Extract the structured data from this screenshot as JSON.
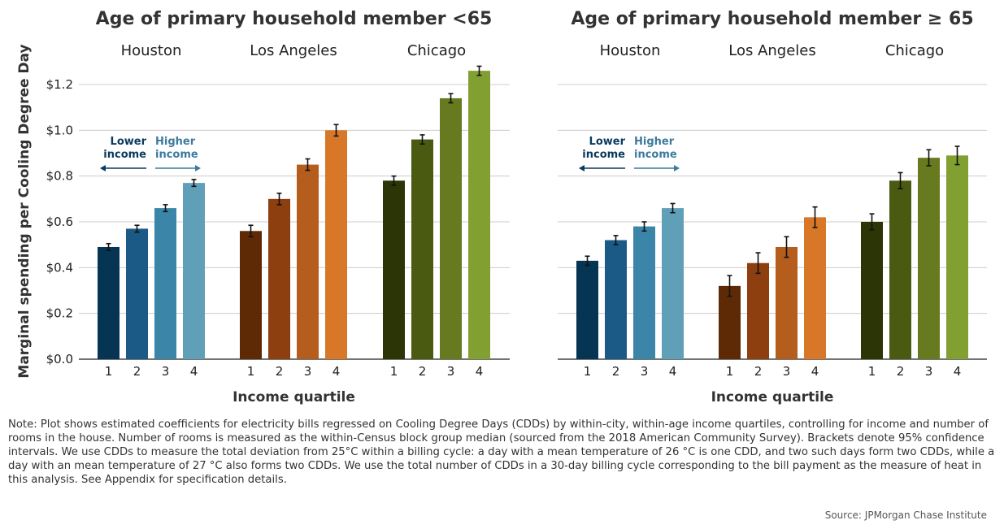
{
  "chart_data": {
    "type": "bar",
    "ylabel": "Marginal spending per Cooling Degree Day",
    "xlabel": "Income quartile",
    "ylim": [
      0,
      1.3
    ],
    "yticks": [
      0,
      0.2,
      0.4,
      0.6,
      0.8,
      1.0,
      1.2
    ],
    "ytick_labels": [
      "$0.0",
      "$0.2",
      "$0.4",
      "$0.6",
      "$0.8",
      "$1.0",
      "$1.2"
    ],
    "grid": true,
    "categories": [
      "1",
      "2",
      "3",
      "4"
    ],
    "legend": {
      "lower": "Lower\nincome",
      "higher": "Higher\nincome"
    },
    "city_colors": {
      "Houston": [
        "#053552",
        "#1b5a86",
        "#3b85a8",
        "#5f9fb7"
      ],
      "Los Angeles": [
        "#5e2a06",
        "#8d3f10",
        "#b45d1d",
        "#d97729"
      ],
      "Chicago": [
        "#2c3506",
        "#4a5a11",
        "#687a1f",
        "#82a032"
      ]
    },
    "panels": [
      {
        "title": "Age of primary household member <65",
        "groups": [
          {
            "city": "Houston",
            "values": [
              0.49,
              0.57,
              0.66,
              0.77
            ],
            "err": [
              0.015,
              0.015,
              0.015,
              0.015
            ]
          },
          {
            "city": "Los Angeles",
            "values": [
              0.56,
              0.7,
              0.85,
              1.0
            ],
            "err": [
              0.025,
              0.025,
              0.025,
              0.025
            ]
          },
          {
            "city": "Chicago",
            "values": [
              0.78,
              0.96,
              1.14,
              1.26
            ],
            "err": [
              0.02,
              0.02,
              0.02,
              0.02
            ]
          }
        ]
      },
      {
        "title": "Age of primary household member  ≥ 65",
        "groups": [
          {
            "city": "Houston",
            "values": [
              0.43,
              0.52,
              0.58,
              0.66
            ],
            "err": [
              0.02,
              0.02,
              0.02,
              0.02
            ]
          },
          {
            "city": "Los Angeles",
            "values": [
              0.32,
              0.42,
              0.49,
              0.62
            ],
            "err": [
              0.045,
              0.045,
              0.045,
              0.045
            ]
          },
          {
            "city": "Chicago",
            "values": [
              0.6,
              0.78,
              0.88,
              0.89
            ],
            "err": [
              0.035,
              0.035,
              0.035,
              0.04
            ]
          }
        ]
      }
    ]
  },
  "note": "Note: Plot shows estimated coefficients for electricity bills regressed on Cooling Degree Days (CDDs) by within-city, within-age income quartiles, controlling for income and number of rooms in the house. Number of rooms is measured as the within-Census block group median (sourced from the 2018 American Community Survey). Brackets denote 95% confidence intervals. We use CDDs to measure the total deviation from 25°C within a billing cycle: a day with a mean temperature of 26 °C is one CDD, and two such days form two CDDs, while a day with an mean temperature of 27 °C also forms two CDDs. We use the total number of CDDs in a 30-day billing cycle corresponding to the bill payment as the measure of heat in this analysis. See Appendix for specification details.",
  "source": "Source: JPMorgan Chase Institute",
  "colors": {
    "text": "#333333",
    "grid": "#cccccc",
    "axis": "#222222",
    "legend_lower": "#0a3a5c",
    "legend_higher": "#3d7a9e"
  }
}
